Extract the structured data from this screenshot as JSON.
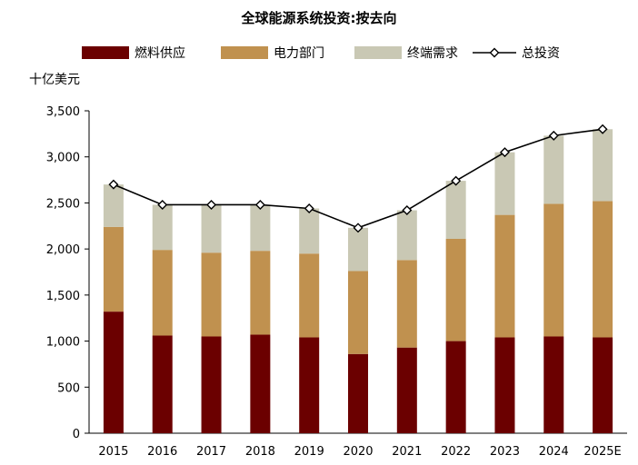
{
  "chart_data": {
    "type": "bar",
    "stacked": true,
    "title": "全球能源系统投资:按去向",
    "unit_label": "十亿美元",
    "categories": [
      "2015",
      "2016",
      "2017",
      "2018",
      "2019",
      "2020",
      "2021",
      "2022",
      "2023",
      "2024",
      "2025E"
    ],
    "series": [
      {
        "name": "燃料供应",
        "kind": "bar",
        "color": "#6b0000",
        "values": [
          1320,
          1060,
          1050,
          1070,
          1040,
          860,
          930,
          1000,
          1040,
          1050,
          1040
        ]
      },
      {
        "name": "电力部门",
        "kind": "bar",
        "color": "#c0914f",
        "values": [
          920,
          930,
          910,
          910,
          910,
          900,
          950,
          1110,
          1330,
          1440,
          1480
        ]
      },
      {
        "name": "终端需求",
        "kind": "bar",
        "color": "#c9c8b4",
        "values": [
          460,
          490,
          520,
          500,
          490,
          470,
          540,
          630,
          680,
          740,
          780
        ]
      },
      {
        "name": "总投资",
        "kind": "line",
        "color": "#000000",
        "values": [
          2700,
          2480,
          2480,
          2480,
          2440,
          2230,
          2420,
          2740,
          3050,
          3230,
          3300
        ]
      }
    ],
    "ylim": [
      0,
      3500
    ],
    "yticks": [
      0,
      500,
      1000,
      1500,
      2000,
      2500,
      3000,
      3500
    ],
    "ytick_labels": [
      "0",
      "500",
      "1,000",
      "1,500",
      "2,000",
      "2,500",
      "3,000",
      "3,500"
    ],
    "grid": false,
    "legend_position": "top"
  }
}
